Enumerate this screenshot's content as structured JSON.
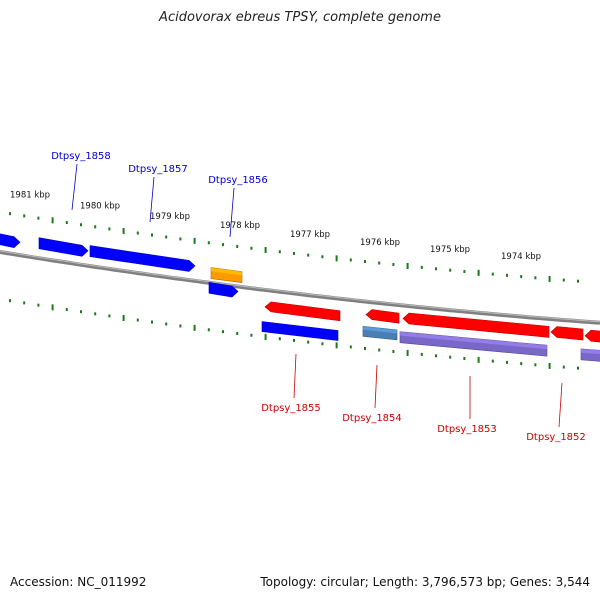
{
  "title": "Acidovorax ebreus TPSY, complete genome",
  "footer": {
    "accession": "Accession: NC_011992",
    "summary": "Topology: circular; Length: 3,796,573 bp; Genes: 3,544"
  },
  "colors": {
    "backbone": "#808080",
    "tick": "#1a7a1a",
    "top_label": "#0000cc",
    "bottom_label": "#cc0000",
    "cds_blue": "#0000ff",
    "cds_orange": "#ff9900",
    "cds_red": "#ff0000",
    "cds_steel": "#4a7fb5",
    "cds_purple": "#7a68c8"
  },
  "kbp_labels": [
    "1981 kbp",
    "1980 kbp",
    "1979 kbp",
    "1978 kbp",
    "1977 kbp",
    "1976 kbp",
    "1975 kbp",
    "1974 kbp"
  ],
  "top_gene_labels": [
    "Dtpsy_1858",
    "Dtpsy_1857",
    "Dtpsy_1856"
  ],
  "bottom_gene_labels": [
    "Dtpsy_1855",
    "Dtpsy_1854",
    "Dtpsy_1853",
    "Dtpsy_1852"
  ]
}
